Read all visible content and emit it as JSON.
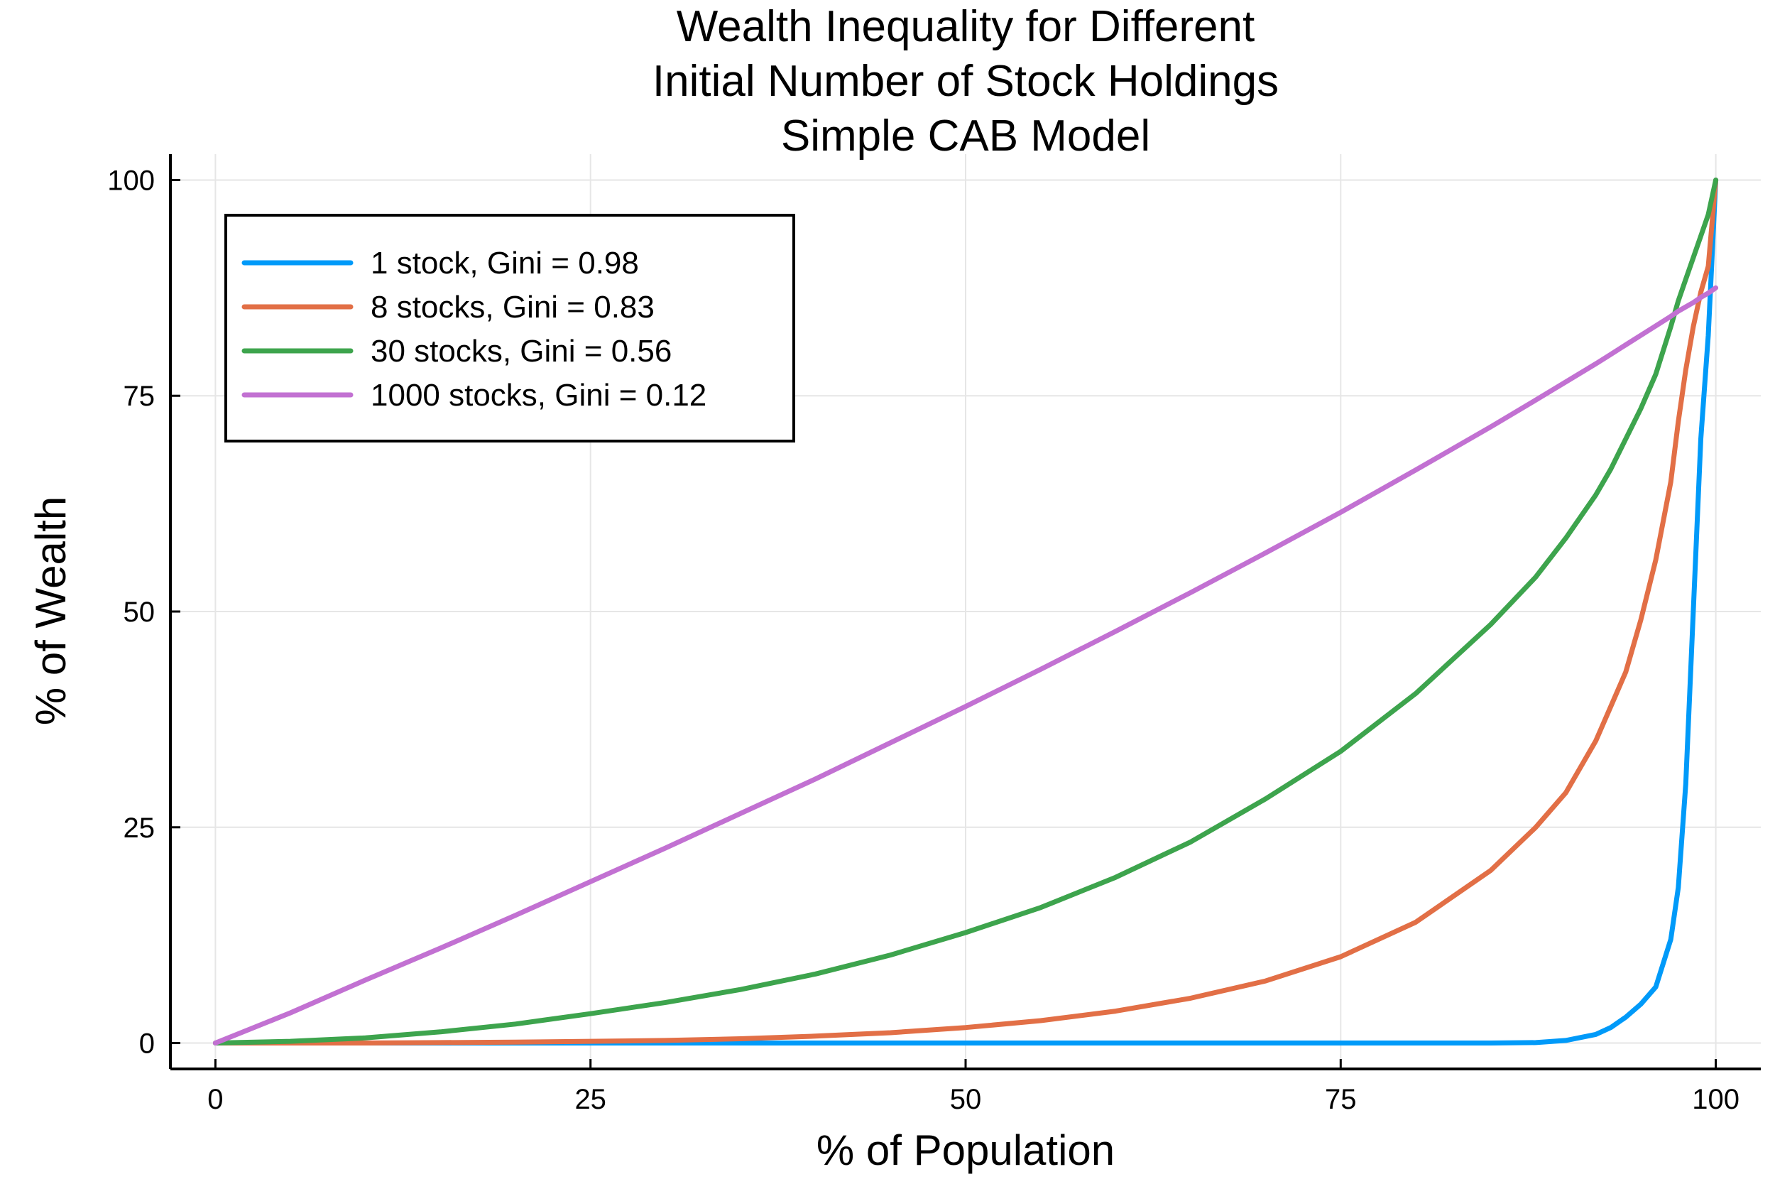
{
  "chart_data": {
    "type": "line",
    "title_lines": [
      "Wealth Inequality for Different",
      "Initial Number of Stock Holdings",
      "Simple CAB Model"
    ],
    "xlabel": "% of Population",
    "ylabel": "% of Wealth",
    "xlim": [
      -3,
      103
    ],
    "ylim": [
      -3,
      103
    ],
    "xticks": [
      0,
      25,
      50,
      75,
      100
    ],
    "yticks": [
      0,
      25,
      50,
      75,
      100
    ],
    "grid": true,
    "legend_position": "top-left",
    "x": [
      0,
      5,
      10,
      15,
      20,
      25,
      30,
      35,
      40,
      45,
      50,
      55,
      60,
      65,
      70,
      75,
      80,
      85,
      88,
      90,
      92,
      93,
      94,
      95,
      96,
      97,
      97.5,
      98,
      98.5,
      99,
      99.5,
      100
    ],
    "series": [
      {
        "name": "1 stock, Gini = 0.98",
        "color": "#009af9",
        "values": [
          0,
          0,
          0,
          0,
          0,
          0,
          0,
          0,
          0,
          0,
          0,
          0,
          0,
          0,
          0,
          0,
          0,
          0,
          0.05,
          0.3,
          1.0,
          1.8,
          3.0,
          4.5,
          6.5,
          12,
          18,
          30,
          50,
          70,
          82,
          100
        ]
      },
      {
        "name": "8 stocks, Gini = 0.83",
        "color": "#e26f46",
        "values": [
          0,
          0,
          0,
          0.05,
          0.1,
          0.2,
          0.3,
          0.5,
          0.8,
          1.2,
          1.8,
          2.6,
          3.7,
          5.2,
          7.2,
          10,
          14,
          20,
          25,
          29,
          35,
          39,
          43,
          49,
          56,
          65,
          72,
          78,
          83,
          87,
          90,
          100
        ]
      },
      {
        "name": "30 stocks, Gini = 0.56",
        "color": "#3da44d",
        "values": [
          0,
          0.2,
          0.6,
          1.3,
          2.2,
          3.4,
          4.7,
          6.2,
          8,
          10.2,
          12.8,
          15.7,
          19.2,
          23.3,
          28.3,
          33.8,
          40.5,
          48.5,
          54,
          58.5,
          63.5,
          66.5,
          70,
          73.5,
          77.5,
          83,
          86,
          88.5,
          91,
          93.5,
          96,
          100
        ]
      },
      {
        "name": "1000 stocks, Gini = 0.12",
        "color": "#c271d2",
        "values": [
          0,
          3.5,
          7.3,
          11,
          14.8,
          18.7,
          22.6,
          26.6,
          30.6,
          34.8,
          39,
          43.3,
          47.7,
          52.2,
          56.8,
          61.5,
          66.4,
          71.4,
          74.5,
          76.6,
          78.7,
          79.8,
          80.9,
          82,
          83.1,
          84.2,
          84.8,
          85.3,
          85.8,
          86.4,
          86.9,
          87.5
        ]
      }
    ]
  }
}
